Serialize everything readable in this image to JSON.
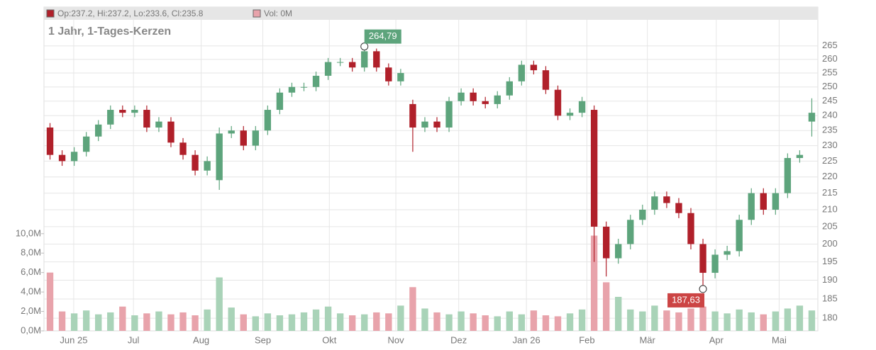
{
  "chart_data": {
    "type": "candlestick",
    "legend": {
      "ohlc": "Op:237.2, Hi:237.2, Lo:233.6, Cl:235.8",
      "volume": "Vol: 0M"
    },
    "subtitle": "1 Jahr, 1-Tages-Kerzen",
    "up_color": "#5da47c",
    "down_color": "#b0202a",
    "volume_up_color": "#a9d3b8",
    "volume_down_color": "#e8a3ab",
    "log_scale": true,
    "grid": true,
    "xlim": [
      -0.5,
      63.5
    ],
    "xticks": [
      {
        "value": 1.96,
        "label": "Jun 25"
      },
      {
        "value": 6.9,
        "label": "Jul"
      },
      {
        "value": 12.5,
        "label": "Aug"
      },
      {
        "value": 17.6,
        "label": "Sep"
      },
      {
        "value": 23.1,
        "label": "Okt"
      },
      {
        "value": 28.6,
        "label": "Nov"
      },
      {
        "value": 33.8,
        "label": "Dez"
      },
      {
        "value": 39.4,
        "label": "Jan 26"
      },
      {
        "value": 44.4,
        "label": "Feb"
      },
      {
        "value": 49.4,
        "label": "Mär"
      },
      {
        "value": 55.1,
        "label": "Apr"
      },
      {
        "value": 60.3,
        "label": "Mai"
      }
    ],
    "ylim": [
      176.8,
      275
    ],
    "yticks": [
      180,
      185,
      190,
      195,
      200,
      205,
      210,
      215,
      220,
      225,
      230,
      235,
      240,
      245,
      250,
      255,
      260,
      265
    ],
    "y2lim": [
      0,
      32000000
    ],
    "y2ticks": [
      {
        "value": 0,
        "label": "0,0M"
      },
      {
        "value": 2000000,
        "label": "2,0M"
      },
      {
        "value": 4000000,
        "label": "4,0M"
      },
      {
        "value": 6000000,
        "label": "6,0M"
      },
      {
        "value": 8000000,
        "label": "8,0M"
      },
      {
        "value": 10000000,
        "label": "10,0M"
      }
    ],
    "open": [
      236,
      227,
      225,
      228,
      233,
      237,
      242,
      241,
      242,
      236,
      238,
      231,
      227,
      222,
      219,
      234,
      235,
      230,
      235,
      242,
      248,
      250,
      250,
      254,
      259,
      259,
      257,
      263,
      257,
      252,
      244,
      236,
      238,
      236,
      245,
      248,
      245,
      244,
      247,
      252,
      258,
      256,
      249,
      240,
      241,
      242,
      205,
      196,
      200,
      207,
      210,
      214,
      212,
      209,
      200,
      192,
      197,
      198,
      207,
      215,
      210,
      215,
      226,
      238
    ],
    "high": [
      237.5,
      228.5,
      229.5,
      234.5,
      238.5,
      243.5,
      243.5,
      243.5,
      243.5,
      239.5,
      239.5,
      232.5,
      228.5,
      226.5,
      236,
      236.5,
      236.5,
      236.5,
      243.5,
      249.5,
      251.5,
      251.5,
      255.5,
      260.5,
      260.5,
      260.5,
      264.79,
      264,
      258.5,
      256.5,
      245.5,
      239.5,
      239.5,
      246.5,
      249.5,
      249.5,
      246.5,
      248.5,
      253.5,
      259.5,
      259.5,
      257.5,
      250.5,
      242.5,
      246.5,
      243.5,
      206.5,
      201.5,
      208.5,
      211.5,
      215.5,
      215.5,
      213.5,
      210.5,
      201.5,
      198.5,
      199.5,
      208.5,
      216.5,
      216.5,
      216.5,
      227.5,
      228.5,
      246
    ],
    "low": [
      225.5,
      223.5,
      223.5,
      226.5,
      231.5,
      235.5,
      239.5,
      239.5,
      234.5,
      234.5,
      229.5,
      225.5,
      220.5,
      220.5,
      216,
      232.5,
      228.5,
      228.5,
      233.5,
      240.5,
      246.5,
      248.5,
      248.5,
      252.5,
      257.5,
      255.5,
      255.5,
      255.5,
      250.5,
      250.5,
      228,
      234.5,
      234.5,
      234.5,
      243.5,
      243.5,
      242.5,
      242.5,
      245.5,
      250.5,
      254.5,
      247.5,
      238.5,
      238.5,
      239.5,
      195,
      191,
      194.5,
      198.5,
      205.5,
      208.5,
      210.5,
      207.5,
      198.5,
      187.63,
      190.5,
      195.5,
      196.5,
      205.5,
      208.5,
      208.5,
      213.5,
      224.5,
      233
    ],
    "close": [
      227,
      225,
      228,
      233,
      237,
      242,
      241,
      242,
      236,
      238,
      231,
      227,
      222,
      225,
      234,
      235,
      230,
      235,
      242,
      248,
      250,
      250,
      254,
      259,
      259,
      257,
      263,
      257,
      252,
      255,
      236,
      238,
      236,
      245,
      248,
      245,
      244,
      247,
      252,
      258,
      256,
      249,
      240,
      241,
      245,
      205,
      196,
      200,
      207,
      210,
      214,
      212,
      209,
      200,
      192,
      197,
      198,
      207,
      215,
      210,
      215,
      226,
      227,
      241
    ],
    "volume": [
      6000000,
      2000000,
      1800000,
      2100000,
      1700000,
      1900000,
      2500000,
      1600000,
      1800000,
      2000000,
      1700000,
      1900000,
      1600000,
      2200000,
      5500000,
      2400000,
      1700000,
      1500000,
      1800000,
      1600000,
      1700000,
      1900000,
      2200000,
      2500000,
      1800000,
      1600000,
      1700000,
      1900000,
      1800000,
      2600000,
      4500000,
      2300000,
      1900000,
      1700000,
      2000000,
      1800000,
      1600000,
      1500000,
      2000000,
      1700000,
      2100000,
      1600000,
      1500000,
      1800000,
      2200000,
      9800000,
      5000000,
      3500000,
      2200000,
      2000000,
      2600000,
      2100000,
      1900000,
      2300000,
      2500000,
      2000000,
      1800000,
      2200000,
      1900000,
      1700000,
      2000000,
      2300000,
      2600000,
      2100000
    ],
    "annotations": [
      {
        "label": "264,79",
        "value": 264.79,
        "x": 26,
        "color": "#5da47c"
      },
      {
        "label": "187,63",
        "value": 187.63,
        "x": 54,
        "color": "#cc4444"
      }
    ]
  }
}
